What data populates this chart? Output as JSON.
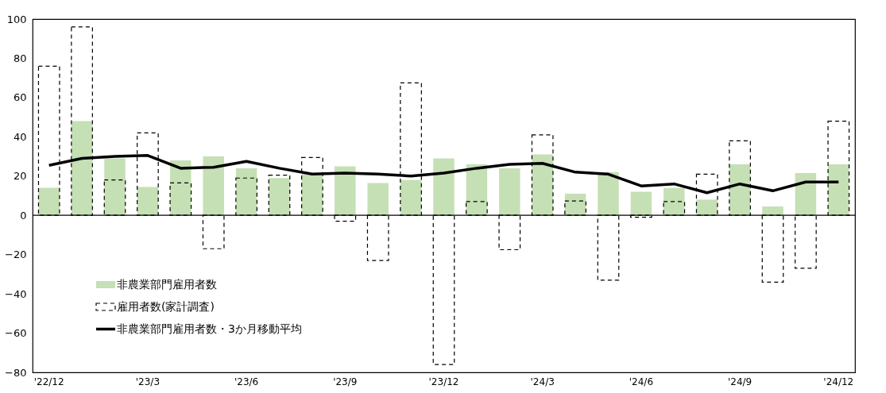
{
  "chart_data": {
    "type": "bar",
    "categories": [
      "'22/12",
      null,
      null,
      "'23/3",
      null,
      null,
      "'23/6",
      null,
      null,
      "'23/9",
      null,
      null,
      "'23/12",
      null,
      null,
      "'24/3",
      null,
      null,
      "'24/6",
      null,
      null,
      "'24/9",
      null,
      null,
      "'24/12"
    ],
    "series": [
      {
        "name": "非農業部門雇用者数",
        "color": "#c5e0b4",
        "values": [
          14,
          48,
          29,
          14.5,
          28,
          30,
          24,
          19,
          21,
          25,
          16.5,
          18,
          29,
          26,
          24,
          31,
          11,
          22,
          12,
          14,
          8,
          26,
          4.5,
          21.5,
          26
        ]
      },
      {
        "name": "雇用者数(家計調査)",
        "color": "#000000",
        "line_style": "dashed",
        "values": [
          76,
          96,
          18,
          42,
          16.5,
          -17,
          19,
          20.5,
          29.5,
          -3,
          -23,
          67.5,
          -76,
          7,
          -17.5,
          41,
          7.3,
          -33,
          -1,
          7,
          21,
          38,
          -34,
          -27,
          48
        ]
      },
      {
        "name": "非農業部門雇用者数・3か月移動平均",
        "type": "line",
        "color": "#000000",
        "line_style": "solid",
        "values": [
          25.5,
          29,
          30,
          30.5,
          24,
          24.5,
          27.5,
          24,
          21,
          21.5,
          21,
          20,
          21.5,
          24,
          26,
          26.5,
          22,
          21,
          15,
          16,
          11.5,
          16,
          12.5,
          17,
          17
        ]
      }
    ],
    "ylim": [
      -80,
      100
    ],
    "yticks": [
      -80,
      -60,
      -40,
      -20,
      0,
      20,
      40,
      60,
      80,
      100
    ],
    "ref_lines": [
      {
        "axis": "y",
        "value": 0,
        "color": "#000000"
      }
    ],
    "grid": false,
    "legend": "bottom left",
    "marker": "none"
  }
}
